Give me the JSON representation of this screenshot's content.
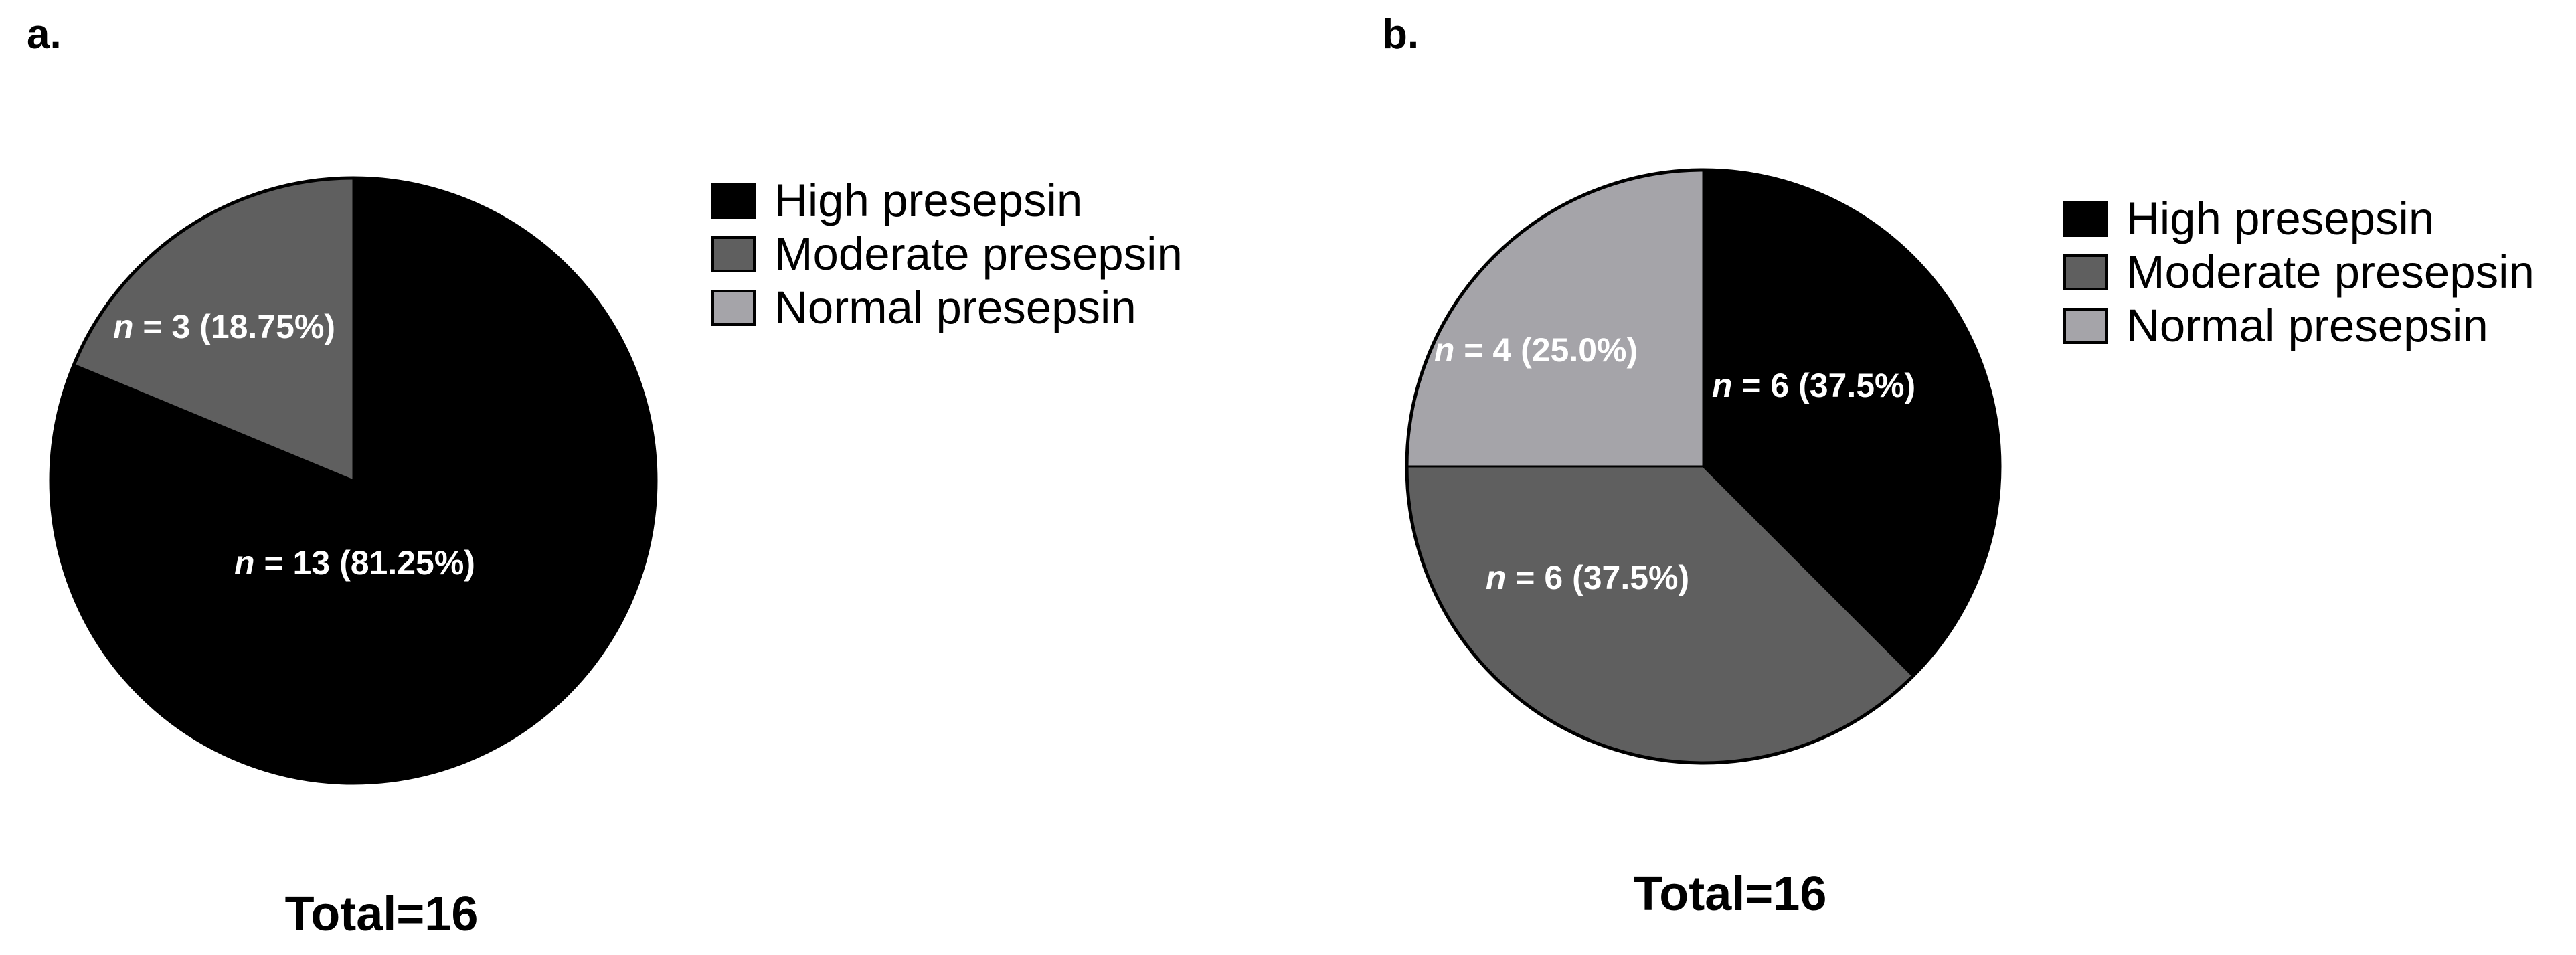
{
  "chart_data": [
    {
      "type": "pie",
      "panel_label": "a.",
      "slices": [
        {
          "name": "High presepsin",
          "value": 13,
          "percent": 81.25,
          "label_n": "n",
          "label_rest": " = 13 (81.25%)",
          "color": "#000000"
        },
        {
          "name": "Moderate presepsin",
          "value": 3,
          "percent": 18.75,
          "label_n": "n",
          "label_rest": " = 3 (18.75%)",
          "color": "#5f5f5f"
        }
      ],
      "legend": [
        {
          "name": "High presepsin",
          "color": "#000000"
        },
        {
          "name": "Moderate presepsin",
          "color": "#5f5f5f"
        },
        {
          "name": "Normal presepsin",
          "color": "#a5a4a9"
        }
      ],
      "legend_position": "right",
      "start_direction": "top",
      "order": "clockwise",
      "total_label": "Total=16"
    },
    {
      "type": "pie",
      "panel_label": "b.",
      "slices": [
        {
          "name": "High presepsin",
          "value": 6,
          "percent": 37.5,
          "label_n": "n",
          "label_rest": " = 6 (37.5%)",
          "color": "#000000"
        },
        {
          "name": "Moderate presepsin",
          "value": 6,
          "percent": 37.5,
          "label_n": "n",
          "label_rest": " = 6 (37.5%)",
          "color": "#5f5f5f"
        },
        {
          "name": "Normal presepsin",
          "value": 4,
          "percent": 25.0,
          "label_n": "n",
          "label_rest": " = 4 (25.0%)",
          "color": "#a5a4a9"
        }
      ],
      "legend": [
        {
          "name": "High presepsin",
          "color": "#000000"
        },
        {
          "name": "Moderate presepsin",
          "color": "#5f5f5f"
        },
        {
          "name": "Normal presepsin",
          "color": "#a5a4a9"
        }
      ],
      "legend_position": "right",
      "start_direction": "top",
      "order": "clockwise",
      "total_label": "Total=16"
    }
  ]
}
